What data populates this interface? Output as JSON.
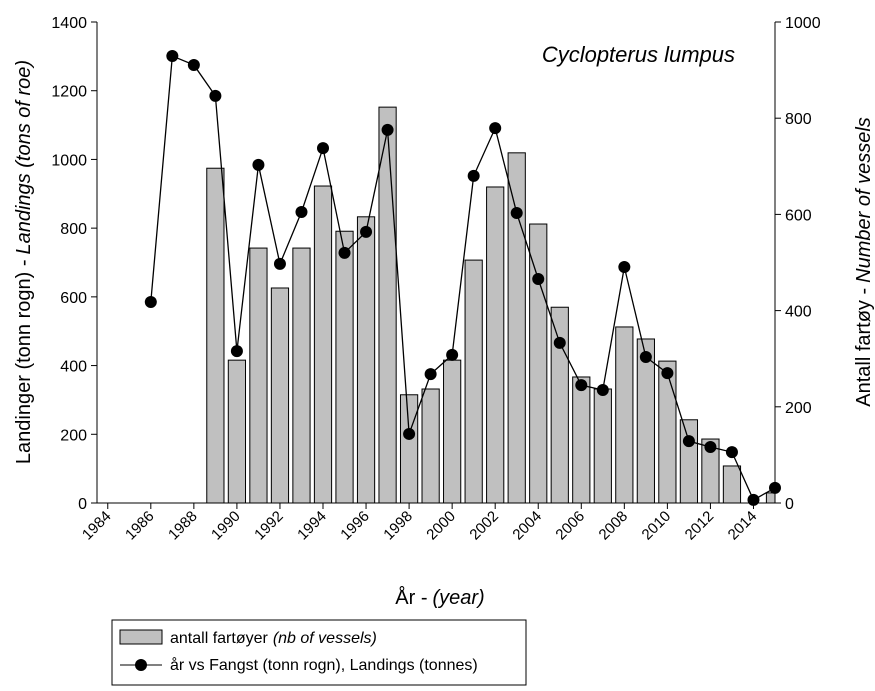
{
  "chart_data": {
    "type": "bar-line",
    "title": "Cyclopterus lumpus",
    "xlabel": [
      "År -",
      "(year)"
    ],
    "ylabel": [
      "Landinger (tonn rogn) -",
      "Landings (tons of roe)"
    ],
    "y2label": [
      "Antall fartøy -",
      "Number of vessels"
    ],
    "x": [
      1984,
      1985,
      1986,
      1987,
      1988,
      1989,
      1990,
      1991,
      1992,
      1993,
      1994,
      1995,
      1996,
      1997,
      1998,
      1999,
      2000,
      2001,
      2002,
      2003,
      2004,
      2005,
      2006,
      2007,
      2008,
      2009,
      2010,
      2011,
      2012,
      2013,
      2014,
      2015
    ],
    "xlim": [
      1983.5,
      2015
    ],
    "xticks": [
      1984,
      1986,
      1988,
      1990,
      1992,
      1994,
      1996,
      1998,
      2000,
      2002,
      2004,
      2006,
      2008,
      2010,
      2012,
      2014
    ],
    "ylim": [
      0,
      1400
    ],
    "yticks": [
      0,
      200,
      400,
      600,
      800,
      1000,
      1200,
      1400
    ],
    "y2lim": [
      0,
      1000
    ],
    "y2ticks": [
      0,
      200,
      400,
      600,
      800,
      1000
    ],
    "series": [
      {
        "name": "antall fartøyer",
        "name_note": "(nb of vessels)",
        "type": "bar",
        "axis": "y2",
        "color": "#c0c0c0",
        "values": [
          null,
          null,
          null,
          null,
          null,
          696,
          297,
          530,
          447,
          530,
          659,
          565,
          595,
          823,
          225,
          237,
          297,
          505,
          657,
          728,
          580,
          407,
          262,
          237,
          366,
          341,
          295,
          173,
          133,
          77,
          null,
          21
        ]
      },
      {
        "name": "år vs Fangst (tonn rogn), Landings (tonnes)",
        "type": "line",
        "color": "#000000",
        "values": [
          null,
          null,
          585,
          1301,
          1275,
          1185,
          442,
          984,
          696,
          847,
          1033,
          728,
          789,
          1086,
          201,
          375,
          431,
          952,
          1091,
          844,
          652,
          466,
          343,
          329,
          687,
          425,
          378,
          180,
          163,
          148,
          9,
          44
        ]
      }
    ]
  }
}
